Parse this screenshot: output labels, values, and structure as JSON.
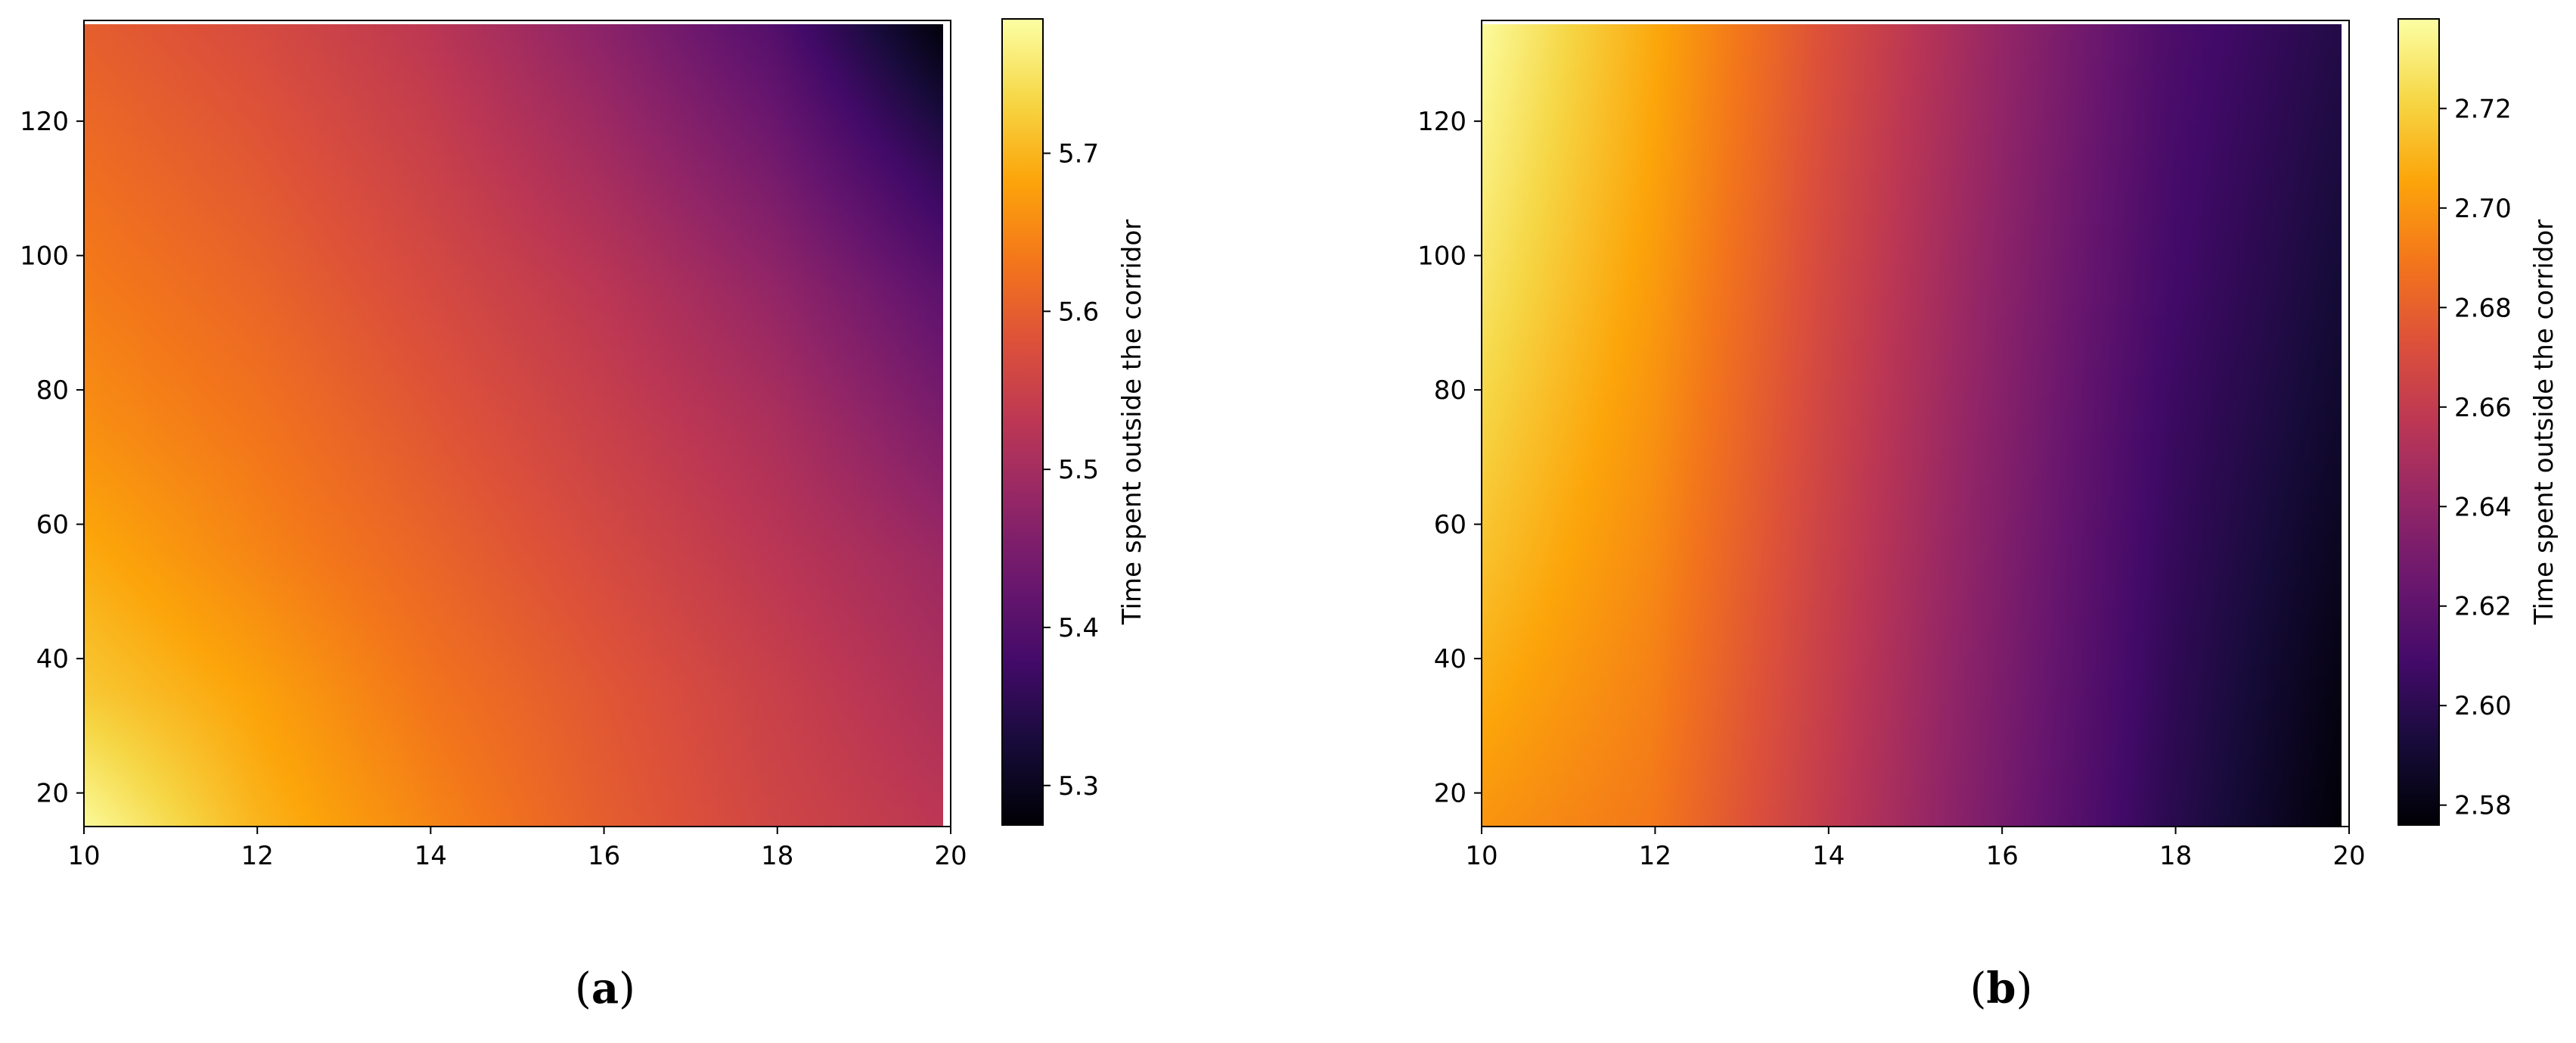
{
  "figure": {
    "panels": [
      {
        "caption": {
          "open": "(",
          "letter": "a",
          "close": ")"
        },
        "colorbar_label": "Time spent outside the corridor",
        "colormap": "inferno"
      },
      {
        "caption": {
          "open": "(",
          "letter": "b",
          "close": ")"
        },
        "colorbar_label": "Time spent outside the corridor",
        "colormap": "inferno"
      }
    ]
  },
  "chart_data": [
    {
      "type": "heatmap",
      "title": "",
      "xlabel": "",
      "ylabel": "",
      "xlim": [
        10,
        20
      ],
      "ylim": [
        15,
        135
      ],
      "xticks": [
        10,
        12,
        14,
        16,
        18,
        20
      ],
      "yticks": [
        20,
        40,
        60,
        80,
        100,
        120
      ],
      "xticklabels": [
        "10",
        "12",
        "14",
        "16",
        "18",
        "20"
      ],
      "yticklabels": [
        "20",
        "40",
        "60",
        "80",
        "100",
        "120"
      ],
      "colorbar": {
        "label": "Time spent outside the corridor",
        "range": [
          5.275,
          5.785
        ],
        "ticks": [
          5.3,
          5.4,
          5.5,
          5.6,
          5.7
        ],
        "ticklabels": [
          "5.3",
          "5.4",
          "5.5",
          "5.6",
          "5.7"
        ]
      },
      "x": [
        10,
        12,
        14,
        16,
        18,
        20
      ],
      "y": [
        15,
        35,
        55,
        75,
        95,
        115,
        135
      ],
      "z": [
        [
          5.78,
          5.7,
          5.65,
          5.6,
          5.56,
          5.53
        ],
        [
          5.72,
          5.68,
          5.63,
          5.59,
          5.55,
          5.51
        ],
        [
          5.69,
          5.65,
          5.61,
          5.57,
          5.53,
          5.49
        ],
        [
          5.66,
          5.63,
          5.59,
          5.55,
          5.51,
          5.45
        ],
        [
          5.64,
          5.61,
          5.57,
          5.53,
          5.48,
          5.41
        ],
        [
          5.62,
          5.59,
          5.55,
          5.5,
          5.44,
          5.35
        ],
        [
          5.6,
          5.57,
          5.53,
          5.47,
          5.4,
          5.28
        ]
      ]
    },
    {
      "type": "heatmap",
      "title": "",
      "xlabel": "",
      "ylabel": "",
      "xlim": [
        10,
        20
      ],
      "ylim": [
        15,
        135
      ],
      "xticks": [
        10,
        12,
        14,
        16,
        18,
        20
      ],
      "yticks": [
        20,
        40,
        60,
        80,
        100,
        120
      ],
      "xticklabels": [
        "10",
        "12",
        "14",
        "16",
        "18",
        "20"
      ],
      "yticklabels": [
        "20",
        "40",
        "60",
        "80",
        "100",
        "120"
      ],
      "colorbar": {
        "label": "Time spent outside the corridor",
        "range": [
          2.576,
          2.738
        ],
        "ticks": [
          2.58,
          2.6,
          2.62,
          2.64,
          2.66,
          2.68,
          2.7,
          2.72
        ],
        "ticklabels": [
          "2.58",
          "2.60",
          "2.62",
          "2.64",
          "2.66",
          "2.68",
          "2.70",
          "2.72"
        ]
      },
      "x": [
        10,
        12,
        14,
        16,
        18,
        20
      ],
      "y": [
        15,
        35,
        55,
        75,
        95,
        115,
        135
      ],
      "z": [
        [
          2.7,
          2.69,
          2.66,
          2.63,
          2.6,
          2.577
        ],
        [
          2.708,
          2.693,
          2.662,
          2.632,
          2.602,
          2.58
        ],
        [
          2.715,
          2.696,
          2.664,
          2.634,
          2.604,
          2.584
        ],
        [
          2.721,
          2.699,
          2.666,
          2.636,
          2.606,
          2.588
        ],
        [
          2.727,
          2.702,
          2.668,
          2.638,
          2.609,
          2.591
        ],
        [
          2.732,
          2.705,
          2.67,
          2.64,
          2.611,
          2.594
        ],
        [
          2.737,
          2.707,
          2.672,
          2.642,
          2.613,
          2.597
        ]
      ]
    }
  ]
}
